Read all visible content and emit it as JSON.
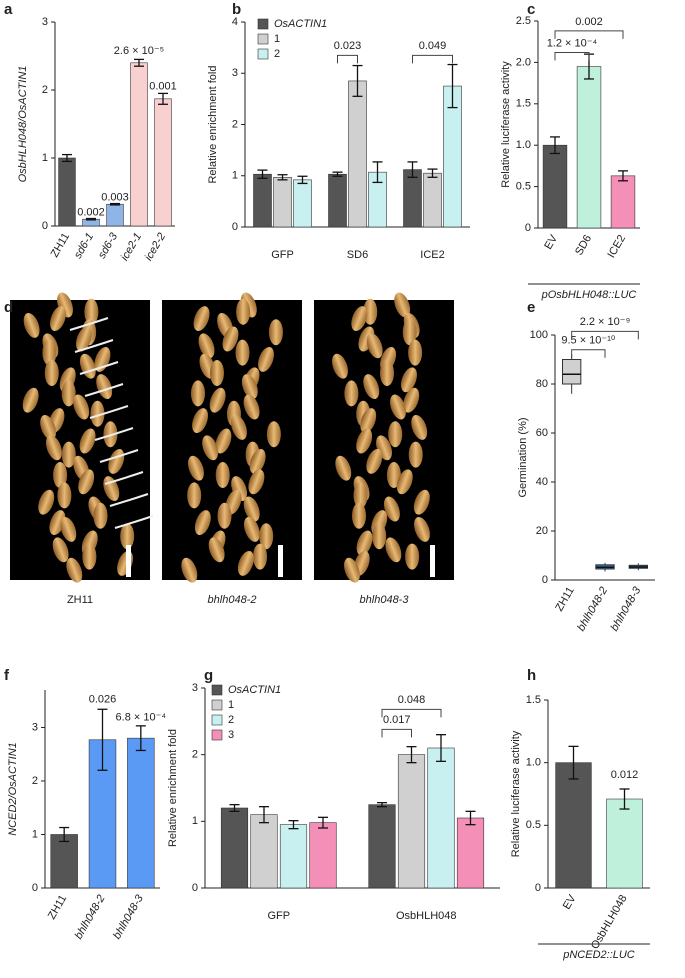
{
  "chart_data": [
    {
      "type": "bar",
      "panel": "a",
      "ylabel": "OsbHLH048/OsACTIN1",
      "categories": [
        "ZH11",
        "sd6-1",
        "sd6-3",
        "ice2-1",
        "ice2-2"
      ],
      "values": [
        1.0,
        0.1,
        0.32,
        2.4,
        1.87
      ],
      "errors": [
        0.05,
        0.01,
        0.01,
        0.05,
        0.08
      ],
      "colors": [
        "#555555",
        "#8fb4e8",
        "#8fb4e8",
        "#f9d0d0",
        "#f9d0d0"
      ],
      "ylim": [
        0,
        3
      ],
      "yticks": [
        0,
        1,
        2,
        3
      ],
      "annotations": [
        "0.002",
        "0.003",
        "2.6 × 10⁻⁵",
        "0.001"
      ]
    },
    {
      "type": "grouped_bar",
      "panel": "b",
      "ylabel": "Relative enrichment fold",
      "categories": [
        "GFP",
        "SD6",
        "ICE2"
      ],
      "series": [
        {
          "name": "OsACTIN1",
          "color": "#555555",
          "values": [
            1.03,
            1.03,
            1.12
          ],
          "errors": [
            0.08,
            0.04,
            0.15
          ]
        },
        {
          "name": "1",
          "color": "#d0d0d0",
          "values": [
            0.97,
            2.85,
            1.05
          ],
          "errors": [
            0.05,
            0.3,
            0.08
          ]
        },
        {
          "name": "2",
          "color": "#c8f0f0",
          "values": [
            0.92,
            1.07,
            2.75
          ],
          "errors": [
            0.07,
            0.2,
            0.42
          ]
        }
      ],
      "ylim": [
        0,
        4
      ],
      "yticks": [
        0,
        1,
        2,
        3,
        4
      ],
      "annotations": [
        "0.023",
        "0.049"
      ]
    },
    {
      "type": "bar",
      "panel": "c",
      "ylabel": "Relative luciferase activity",
      "xlabel": "pOsbHLH048::LUC",
      "categories": [
        "EV",
        "SD6",
        "ICE2"
      ],
      "values": [
        1.0,
        1.95,
        0.63
      ],
      "errors": [
        0.1,
        0.15,
        0.06
      ],
      "colors": [
        "#555555",
        "#bff0dc",
        "#f48fb8"
      ],
      "ylim": [
        0,
        2.5
      ],
      "yticks": [
        0,
        0.5,
        {
          "value": 1,
          "label": "1.0"
        },
        1.5,
        {
          "value": 2,
          "label": "2.0"
        },
        2.5
      ],
      "annotations": [
        "0.002",
        "1.2 × 10⁻⁴"
      ]
    },
    {
      "type": "box",
      "panel": "e",
      "ylabel": "Germination (%)",
      "categories": [
        "ZH11",
        "bhlh048-2",
        "bhlh048-3"
      ],
      "boxes": [
        {
          "min": 76,
          "q1": 80,
          "median": 84,
          "q3": 90,
          "max": 92
        },
        {
          "min": 3.5,
          "q1": 4.5,
          "median": 5.2,
          "q3": 6.2,
          "max": 7
        },
        {
          "min": 4,
          "q1": 4.8,
          "median": 5.3,
          "q3": 6,
          "max": 6.8
        }
      ],
      "colors": [
        "#d0d0d0",
        "#2e6fb5",
        "#2e6fb5"
      ],
      "ylim": [
        0,
        100
      ],
      "yticks": [
        0,
        20,
        40,
        60,
        80,
        100
      ],
      "annotations": [
        "9.5 × 10⁻¹⁰",
        "2.2 × 10⁻⁹"
      ]
    },
    {
      "type": "bar",
      "panel": "f",
      "ylabel": "NCED2/OsACTIN1",
      "categories": [
        "ZH11",
        "bhlh048-2",
        "bhlh048-3"
      ],
      "values": [
        1.0,
        2.77,
        2.8
      ],
      "errors": [
        0.13,
        0.57,
        0.23
      ],
      "colors": [
        "#555555",
        "#5a9af5",
        "#5a9af5"
      ],
      "ylim": [
        0,
        3.7
      ],
      "yticks": [
        0,
        1,
        2,
        3
      ],
      "annotations": [
        "0.026",
        "6.8 × 10⁻⁴"
      ]
    },
    {
      "type": "grouped_bar",
      "panel": "g",
      "ylabel": "Relative enrichment fold",
      "categories": [
        "GFP",
        "OsbHLH048"
      ],
      "series": [
        {
          "name": "OsACTIN1",
          "color": "#555555",
          "values": [
            1.2,
            1.25
          ],
          "errors": [
            0.05,
            0.03
          ]
        },
        {
          "name": "1",
          "color": "#d0d0d0",
          "values": [
            1.1,
            2.0
          ],
          "errors": [
            0.12,
            0.12
          ]
        },
        {
          "name": "2",
          "color": "#c8f0f0",
          "values": [
            0.95,
            2.1
          ],
          "errors": [
            0.06,
            0.2
          ]
        },
        {
          "name": "3",
          "color": "#f48fb8",
          "values": [
            0.98,
            1.05
          ],
          "errors": [
            0.08,
            0.1
          ]
        }
      ],
      "ylim": [
        0,
        3
      ],
      "yticks": [
        0,
        1,
        2,
        3
      ],
      "annotations": [
        "0.017",
        "0.048"
      ]
    },
    {
      "type": "bar",
      "panel": "h",
      "ylabel": "Relative luciferase activity",
      "xlabel": "pNCED2::LUC",
      "categories": [
        "EV",
        "OsbHLH048"
      ],
      "values": [
        1.0,
        0.71
      ],
      "errors": [
        0.13,
        0.08
      ],
      "colors": [
        "#555555",
        "#bff0dc"
      ],
      "ylim": [
        0,
        1.5
      ],
      "yticks": [
        0,
        0.5,
        {
          "value": 1,
          "label": "1.0"
        },
        1.5
      ],
      "annotations": [
        "0.012"
      ]
    }
  ],
  "images": {
    "panel": "d",
    "labels": [
      "ZH11",
      "bhlh048-2",
      "bhlh048-3"
    ]
  }
}
